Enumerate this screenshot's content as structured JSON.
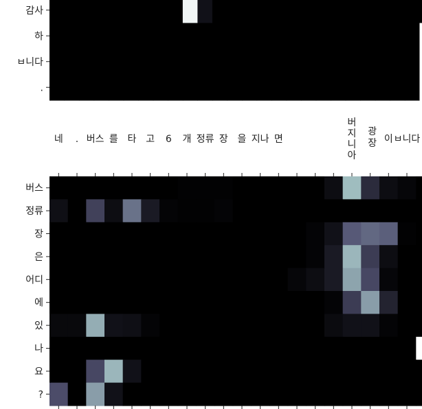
{
  "chart_data": [
    {
      "type": "heatmap",
      "title": "",
      "xlabel": "",
      "ylabel": "",
      "colormap": "bone",
      "x_categories": [
        "네",
        ".",
        "버스",
        "를",
        "타",
        "고",
        "6",
        "개",
        "정류",
        "장",
        "을",
        "지나",
        "면",
        "",
        "",
        "",
        "",
        "",
        "",
        "",
        "",
        "",
        "",
        "",
        "",
        ""
      ],
      "y_categories": [
        "감사",
        "하",
        "ㅂ니다",
        "."
      ],
      "values": [
        [
          0,
          0,
          0,
          0,
          0,
          0,
          0,
          0,
          0,
          0.96,
          0.08,
          0,
          0,
          0,
          0,
          0,
          0,
          0,
          0,
          0,
          0,
          0,
          0,
          0,
          0,
          0
        ],
        [
          0,
          0,
          0,
          0,
          0,
          0,
          0,
          0,
          0,
          0,
          0,
          0,
          0,
          0,
          0,
          0,
          0,
          0,
          0,
          0,
          0,
          0,
          0,
          0,
          0,
          1.0
        ],
        [
          0,
          0,
          0,
          0,
          0,
          0,
          0,
          0,
          0,
          0,
          0,
          0,
          0,
          0,
          0,
          0,
          0,
          0,
          0,
          0,
          0,
          0,
          0,
          0,
          0,
          1.0
        ],
        [
          0,
          0,
          0,
          0,
          0,
          0,
          0,
          0,
          0,
          0,
          0,
          0,
          0,
          0,
          0,
          0,
          0,
          0,
          0,
          0,
          0,
          0,
          0,
          0,
          0,
          1.0
        ]
      ]
    },
    {
      "type": "heatmap",
      "title": "",
      "xlabel": "",
      "ylabel": "",
      "colormap": "bone",
      "x_categories": [
        "네",
        ".",
        "버스",
        "를",
        "타",
        "고",
        "6",
        "개",
        "정류",
        "장",
        "을",
        "지나",
        "면",
        "",
        "",
        "",
        "버지니아",
        "광장",
        "이",
        "ㅂ니다",
        "."
      ],
      "y_categories": [
        "버스",
        "정류",
        "장",
        "은",
        "어디",
        "에",
        "있",
        "나",
        "요",
        "?"
      ],
      "values": [
        [
          0,
          0,
          0,
          0,
          0,
          0,
          0,
          0.01,
          0.01,
          0.01,
          0,
          0,
          0,
          0,
          0,
          0.06,
          0.72,
          0.2,
          0.06,
          0.03,
          0
        ],
        [
          0.07,
          0,
          0.3,
          0.06,
          0.48,
          0.12,
          0.02,
          0.01,
          0.01,
          0.02,
          0,
          0,
          0,
          0,
          0,
          0,
          0,
          0,
          0,
          0,
          0
        ],
        [
          0,
          0,
          0,
          0,
          0,
          0,
          0,
          0,
          0,
          0,
          0,
          0,
          0,
          0,
          0.02,
          0.08,
          0.4,
          0.45,
          0.42,
          0.01,
          0
        ],
        [
          0,
          0,
          0,
          0,
          0,
          0,
          0,
          0,
          0,
          0,
          0,
          0,
          0,
          0,
          0.02,
          0.12,
          0.7,
          0.28,
          0.06,
          0,
          0
        ],
        [
          0,
          0,
          0,
          0,
          0,
          0,
          0,
          0,
          0,
          0,
          0,
          0,
          0,
          0.03,
          0.06,
          0.12,
          0.64,
          0.33,
          0.03,
          0,
          0
        ],
        [
          0,
          0,
          0,
          0,
          0,
          0,
          0,
          0,
          0,
          0,
          0,
          0,
          0,
          0,
          0,
          0.02,
          0.28,
          0.62,
          0.16,
          0,
          0
        ],
        [
          0.04,
          0.04,
          0.67,
          0.08,
          0.07,
          0.02,
          0,
          0,
          0,
          0,
          0,
          0,
          0,
          0,
          0,
          0.05,
          0.08,
          0.08,
          0.02,
          0,
          0
        ],
        [
          0,
          0,
          0,
          0,
          0,
          0,
          0,
          0,
          0,
          0,
          0,
          0,
          0,
          0,
          0,
          0,
          0,
          0,
          0,
          0,
          1.0
        ],
        [
          0,
          0,
          0.33,
          0.7,
          0.08,
          0,
          0,
          0,
          0,
          0,
          0,
          0,
          0,
          0,
          0,
          0,
          0,
          0,
          0,
          0,
          0
        ],
        [
          0.35,
          0,
          0.62,
          0.08,
          0,
          0,
          0,
          0,
          0,
          0,
          0,
          0,
          0,
          0,
          0,
          0,
          0,
          0,
          0,
          0,
          0
        ]
      ]
    }
  ]
}
